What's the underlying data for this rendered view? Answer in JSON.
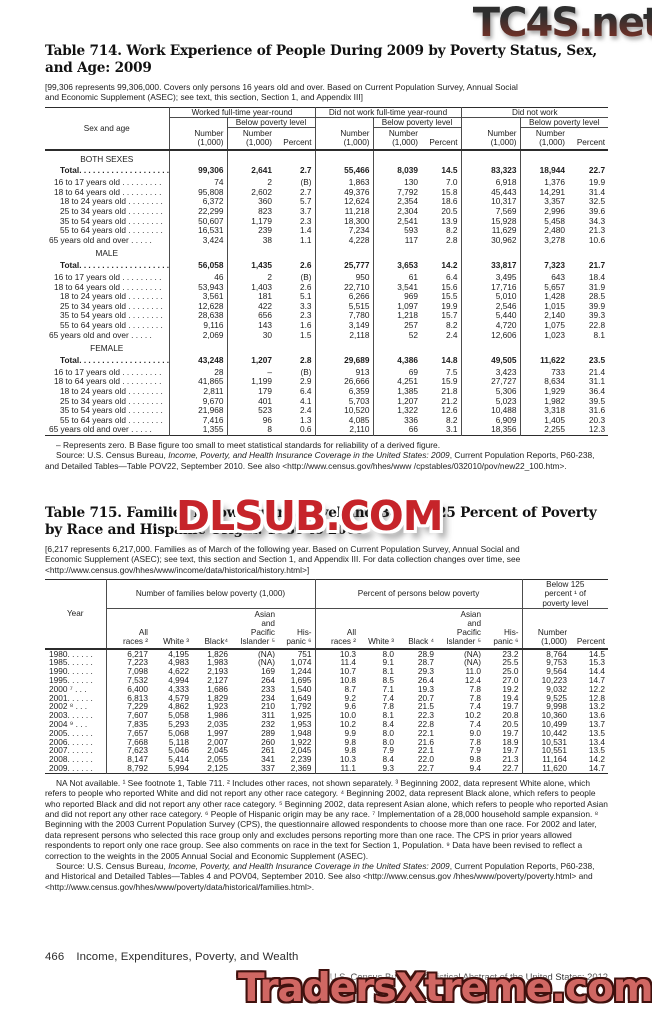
{
  "watermarks": {
    "top_right": "TC4S.net",
    "middle": "DLSUB.COM",
    "bottom": "TradersXtreme.com"
  },
  "table714": {
    "title": "Table 714. Work Experience of People During 2009 by Poverty Status, Sex,\nand Age: 2009",
    "bracket_note": "[99,306 represents 99,306,000. Covers only persons 16 years old and over. Based on Current Population Survey, Annual Social\nand Economic Supplement (ASEC); see text, this section, Section 1, and Appendix III]",
    "stub_header": "Sex and age",
    "groups": [
      {
        "label": "Worked full-time year-round"
      },
      {
        "label": "Did not work full-time year-round"
      },
      {
        "label": "Did not work"
      }
    ],
    "number_label": "Number\n(1,000)",
    "percent_label": "Percent",
    "below_poverty_label": "Below poverty level",
    "sections": [
      {
        "label": "BOTH SEXES",
        "rows": [
          {
            "label": "Total. . . . . . . . . . . . . . . . . . . .",
            "bold": true,
            "indent": 2,
            "values": [
              "99,306",
              "2,641",
              "2.7",
              "55,466",
              "8,039",
              "14.5",
              "83,323",
              "18,944",
              "22.7"
            ]
          },
          {
            "label": "16 to 17 years old . . . . . . . . .",
            "bold": false,
            "indent": 1,
            "values": [
              "74",
              "2",
              "(B)",
              "1,863",
              "130",
              "7.0",
              "6,918",
              "1,376",
              "19.9"
            ]
          },
          {
            "label": "18 to 64 years old . . . . . . . . .",
            "bold": false,
            "indent": 1,
            "values": [
              "95,808",
              "2,602",
              "2.7",
              "49,376",
              "7,792",
              "15.8",
              "45,443",
              "14,291",
              "31.4"
            ]
          },
          {
            "label": "18 to 24 years old . . . . . . . .",
            "bold": false,
            "indent": 2,
            "values": [
              "6,372",
              "360",
              "5.7",
              "12,624",
              "2,354",
              "18.6",
              "10,317",
              "3,357",
              "32.5"
            ]
          },
          {
            "label": "25 to 34 years old . . . . . . . .",
            "bold": false,
            "indent": 2,
            "values": [
              "22,299",
              "823",
              "3.7",
              "11,218",
              "2,304",
              "20.5",
              "7,569",
              "2,996",
              "39.6"
            ]
          },
          {
            "label": "35 to 54 years old . . . . . . . .",
            "bold": false,
            "indent": 2,
            "values": [
              "50,607",
              "1,179",
              "2.3",
              "18,300",
              "2,541",
              "13.9",
              "15,928",
              "5,458",
              "34.3"
            ]
          },
          {
            "label": "55 to 64 years old . . . . . . . .",
            "bold": false,
            "indent": 2,
            "values": [
              "16,531",
              "239",
              "1.4",
              "7,234",
              "593",
              "8.2",
              "11,629",
              "2,480",
              "21.3"
            ]
          },
          {
            "label": "65 years old and over . . . . .",
            "bold": false,
            "indent": 0,
            "values": [
              "3,424",
              "38",
              "1.1",
              "4,228",
              "117",
              "2.8",
              "30,962",
              "3,278",
              "10.6"
            ]
          }
        ]
      },
      {
        "label": "MALE",
        "rows": [
          {
            "label": "Total. . . . . . . . . . . . . . . . . . . .",
            "bold": true,
            "indent": 2,
            "values": [
              "56,058",
              "1,435",
              "2.6",
              "25,777",
              "3,653",
              "14.2",
              "33,817",
              "7,323",
              "21.7"
            ]
          },
          {
            "label": "16 to 17 years old . . . . . . . . .",
            "bold": false,
            "indent": 1,
            "values": [
              "46",
              "2",
              "(B)",
              "950",
              "61",
              "6.4",
              "3,495",
              "643",
              "18.4"
            ]
          },
          {
            "label": "18 to 64 years old . . . . . . . . .",
            "bold": false,
            "indent": 1,
            "values": [
              "53,943",
              "1,403",
              "2.6",
              "22,710",
              "3,541",
              "15.6",
              "17,716",
              "5,657",
              "31.9"
            ]
          },
          {
            "label": "18 to 24 years old . . . . . . . .",
            "bold": false,
            "indent": 2,
            "values": [
              "3,561",
              "181",
              "5.1",
              "6,266",
              "969",
              "15.5",
              "5,010",
              "1,428",
              "28.5"
            ]
          },
          {
            "label": "25 to 34 years old . . . . . . . .",
            "bold": false,
            "indent": 2,
            "values": [
              "12,628",
              "422",
              "3.3",
              "5,515",
              "1,097",
              "19.9",
              "2,546",
              "1,015",
              "39.9"
            ]
          },
          {
            "label": "35 to 54 years old . . . . . . . .",
            "bold": false,
            "indent": 2,
            "values": [
              "28,638",
              "656",
              "2.3",
              "7,780",
              "1,218",
              "15.7",
              "5,440",
              "2,140",
              "39.3"
            ]
          },
          {
            "label": "55 to 64 years old . . . . . . . .",
            "bold": false,
            "indent": 2,
            "values": [
              "9,116",
              "143",
              "1.6",
              "3,149",
              "257",
              "8.2",
              "4,720",
              "1,075",
              "22.8"
            ]
          },
          {
            "label": "65 years old and over . . . . .",
            "bold": false,
            "indent": 0,
            "values": [
              "2,069",
              "30",
              "1.5",
              "2,118",
              "52",
              "2.4",
              "12,606",
              "1,023",
              "8.1"
            ]
          }
        ]
      },
      {
        "label": "FEMALE",
        "rows": [
          {
            "label": "Total. . . . . . . . . . . . . . . . . . . .",
            "bold": true,
            "indent": 2,
            "values": [
              "43,248",
              "1,207",
              "2.8",
              "29,689",
              "4,386",
              "14.8",
              "49,505",
              "11,622",
              "23.5"
            ]
          },
          {
            "label": "16 to 17 years old . . . . . . . . .",
            "bold": false,
            "indent": 1,
            "values": [
              "28",
              "–",
              "(B)",
              "913",
              "69",
              "7.5",
              "3,423",
              "733",
              "21.4"
            ]
          },
          {
            "label": "18 to 64 years old . . . . . . . . .",
            "bold": false,
            "indent": 1,
            "values": [
              "41,865",
              "1,199",
              "2.9",
              "26,666",
              "4,251",
              "15.9",
              "27,727",
              "8,634",
              "31.1"
            ]
          },
          {
            "label": "18 to 24 years old . . . . . . . .",
            "bold": false,
            "indent": 2,
            "values": [
              "2,811",
              "179",
              "6.4",
              "6,359",
              "1,385",
              "21.8",
              "5,306",
              "1,929",
              "36.4"
            ]
          },
          {
            "label": "25 to 34 years old . . . . . . . .",
            "bold": false,
            "indent": 2,
            "values": [
              "9,670",
              "401",
              "4.1",
              "5,703",
              "1,207",
              "21.2",
              "5,023",
              "1,982",
              "39.5"
            ]
          },
          {
            "label": "35 to 54 years old . . . . . . . .",
            "bold": false,
            "indent": 2,
            "values": [
              "21,968",
              "523",
              "2.4",
              "10,520",
              "1,322",
              "12.6",
              "10,488",
              "3,318",
              "31.6"
            ]
          },
          {
            "label": "55 to 64 years old . . . . . . . .",
            "bold": false,
            "indent": 2,
            "values": [
              "7,416",
              "96",
              "1.3",
              "4,085",
              "336",
              "8.2",
              "6,909",
              "1,405",
              "20.3"
            ]
          },
          {
            "label": "65 years old and over . . . . .",
            "bold": false,
            "indent": 0,
            "values": [
              "1,355",
              "8",
              "0.6",
              "2,110",
              "66",
              "3.1",
              "18,356",
              "2,255",
              "12.3"
            ]
          }
        ]
      }
    ],
    "symbol_note": "– Represents zero. B Base figure too small to meet statistical standards for reliability of a derived figure.",
    "source_prefix": "Source: U.S. Census Bureau, ",
    "source_italic": "Income, Poverty, and Health Insurance Coverage in the United States: 2009",
    "source_suffix": ", Current Population Reports, P60-238, and Detailed Tables—Table POV22, September 2010. See also <http://www.census.gov/hhes/www /cpstables/032010/pov/new22_100.htm>."
  },
  "table715": {
    "title": "Table 715. Families Below Poverty Level and Below 125 Percent of Poverty\nby Race and Hispanic Origin: 1980 to 2009",
    "bracket_note": "[6,217 represents 6,217,000. Families as of March of the following year. Based on Current Population Survey, Annual Social and\nEconomic Supplement (ASEC); see text, this section and Section 1, and Appendix III. For data collection changes over time, see\n<http://www.census.gov/hhes/www/income/data/historical/history.html>]",
    "stub_header": "Year",
    "group1_label": "Number of families below poverty (1,000)",
    "group2_label": "Percent of persons below poverty",
    "group3_label": "Below 125\npercent ¹ of\npoverty level",
    "race_headers_number": [
      "All\nraces ²",
      "White ³",
      "Black⁴",
      "Asian\nand\nPacific\nIslander ⁵",
      "His-\npanic ⁶"
    ],
    "race_headers_percent": [
      "All\nraces ²",
      "White ³",
      "Black ⁴",
      "Asian\nand\nPacific\nIslander ⁵",
      "His-\npanic ⁶"
    ],
    "below125_headers": [
      "Number\n(1,000)",
      "Percent"
    ],
    "rows": [
      {
        "year": "1980. . . . . .",
        "values": [
          "6,217",
          "4,195",
          "1,826",
          "(NA)",
          "751",
          "10.3",
          "8.0",
          "28.9",
          "(NA)",
          "23.2",
          "8,764",
          "14.5"
        ]
      },
      {
        "year": "1985. . . . . .",
        "values": [
          "7,223",
          "4,983",
          "1,983",
          "(NA)",
          "1,074",
          "11.4",
          "9.1",
          "28.7",
          "(NA)",
          "25.5",
          "9,753",
          "15.3"
        ]
      },
      {
        "year": "1990. . . . . .",
        "values": [
          "7,098",
          "4,622",
          "2,193",
          "169",
          "1,244",
          "10.7",
          "8.1",
          "29.3",
          "11.0",
          "25.0",
          "9,564",
          "14.4"
        ]
      },
      {
        "year": "1995. . . . . .",
        "values": [
          "7,532",
          "4,994",
          "2,127",
          "264",
          "1,695",
          "10.8",
          "8.5",
          "26.4",
          "12.4",
          "27.0",
          "10,223",
          "14.7"
        ]
      },
      {
        "year": "2000 ⁷ . . .",
        "values": [
          "6,400",
          "4,333",
          "1,686",
          "233",
          "1,540",
          "8.7",
          "7.1",
          "19.3",
          "7.8",
          "19.2",
          "9,032",
          "12.2"
        ]
      },
      {
        "year": "2001. . . . . .",
        "values": [
          "6,813",
          "4,579",
          "1,829",
          "234",
          "1,649",
          "9.2",
          "7.4",
          "20.7",
          "7.8",
          "19.4",
          "9,525",
          "12.8"
        ]
      },
      {
        "year": "2002 ⁸ . . .",
        "values": [
          "7,229",
          "4,862",
          "1,923",
          "210",
          "1,792",
          "9.6",
          "7.8",
          "21.5",
          "7.4",
          "19.7",
          "9,998",
          "13.2"
        ]
      },
      {
        "year": "2003. . . . . .",
        "values": [
          "7,607",
          "5,058",
          "1,986",
          "311",
          "1,925",
          "10.0",
          "8.1",
          "22.3",
          "10.2",
          "20.8",
          "10,360",
          "13.6"
        ]
      },
      {
        "year": "2004 ⁹ . . .",
        "values": [
          "7,835",
          "5,293",
          "2,035",
          "232",
          "1,953",
          "10.2",
          "8.4",
          "22.8",
          "7.4",
          "20.5",
          "10,499",
          "13.7"
        ]
      },
      {
        "year": "2005. . . . . .",
        "values": [
          "7,657",
          "5,068",
          "1,997",
          "289",
          "1,948",
          "9.9",
          "8.0",
          "22.1",
          "9.0",
          "19.7",
          "10,442",
          "13.5"
        ]
      },
      {
        "year": "2006. . . . . .",
        "values": [
          "7,668",
          "5,118",
          "2,007",
          "260",
          "1,922",
          "9.8",
          "8.0",
          "21.6",
          "7.8",
          "18.9",
          "10,531",
          "13.4"
        ]
      },
      {
        "year": "2007. . . . . .",
        "values": [
          "7,623",
          "5,046",
          "2,045",
          "261",
          "2,045",
          "9.8",
          "7.9",
          "22.1",
          "7.9",
          "19.7",
          "10,551",
          "13.5"
        ]
      },
      {
        "year": "2008. . . . . .",
        "values": [
          "8,147",
          "5,414",
          "2,055",
          "341",
          "2,239",
          "10.3",
          "8.4",
          "22.0",
          "9.8",
          "21.3",
          "11,164",
          "14.2"
        ]
      },
      {
        "year": "2009. . . . . .",
        "values": [
          "8,792",
          "5,994",
          "2,125",
          "337",
          "2,369",
          "11.1",
          "9.3",
          "22.7",
          "9.4",
          "22.7",
          "11,620",
          "14.7"
        ]
      }
    ],
    "footnotes": "NA Not available. ¹ See footnote 1, Table 711. ² Includes other races, not shown separately. ³ Beginning 2002, data represent White alone, which refers to people who reported White and did not report any other race category. ⁴ Beginning 2002, data represent Black alone, which refers to people who reported Black and did not report any other race category. ⁵ Beginning 2002, data represent Asian alone, which refers to people who reported Asian and did not report any other race category. ⁶ People of Hispanic origin may be any race. ⁷ Implementation of a 28,000 household sample expansion. ⁸ Beginning with the 2003 Current Population Survey (CPS), the questionnaire allowed respondents to choose more than one race. For 2002 and later, data represent persons who selected this race group only and excludes persons reporting more than one race. The CPS in prior years allowed respondents to report only one race group. See also comments on race in the text for Section 1, Population. ⁹ Data have been revised to reflect a correction to the weights in the 2005 Annual Social and Economic Supplement (ASEC).",
    "source_prefix": "Source: U.S. Census Bureau, ",
    "source_italic": "Income, Poverty, and Health Insurance Coverage in the United States: 2009",
    "source_suffix": ", Current Population Reports, P60-238, and Historical and Detailed Tables—Tables 4 and POV04, September 2010. See also <http://www.census.gov /hhes/www/poverty/poverty.html> and <http://www.census.gov/hhes/www/poverty/data/historical/families.html>."
  },
  "footer": {
    "page_number": "466",
    "section_title": "Income, Expenditures, Poverty, and Wealth",
    "credit": "U.S. Census Bureau, Statistical Abstract of the United States: 2012"
  }
}
